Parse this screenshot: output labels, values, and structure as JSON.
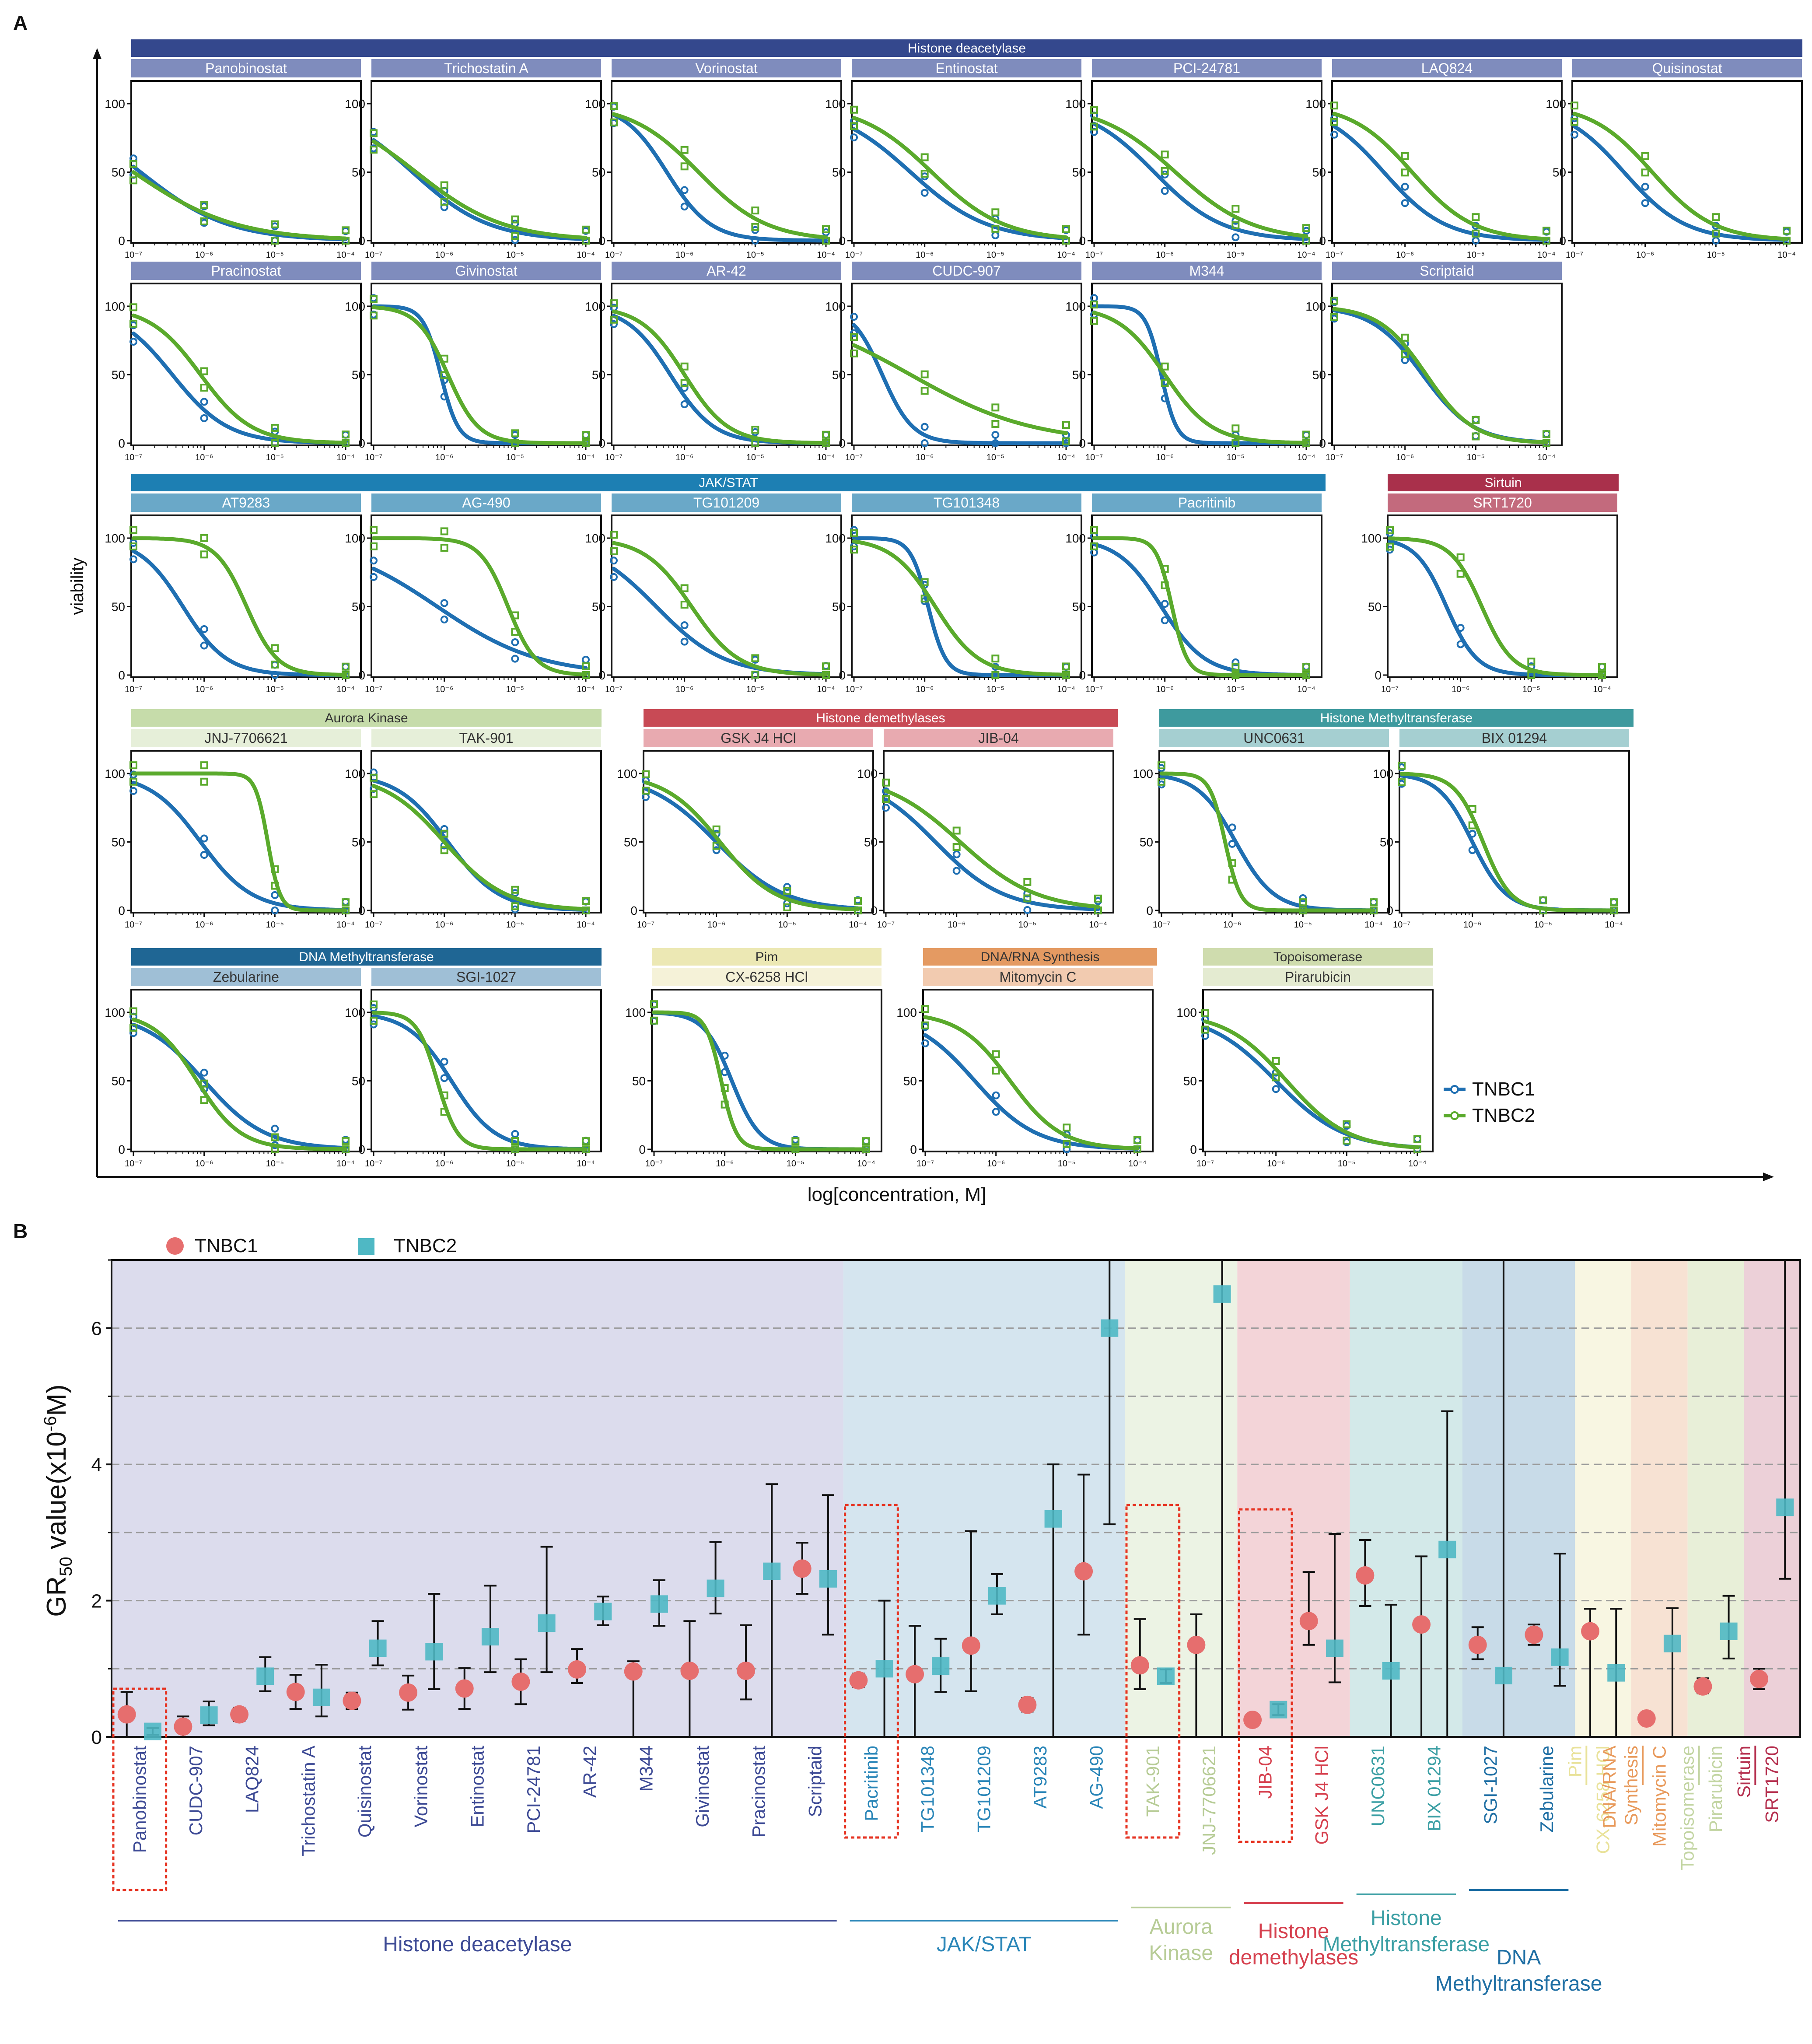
{
  "panelA": {
    "label": "A",
    "ylabel": "viability",
    "xlabel": "log[concentration, M]",
    "yticks": [
      "0",
      "50",
      "100"
    ],
    "xticks": [
      "10⁻⁷",
      "10⁻⁶",
      "10⁻⁵",
      "10⁻⁴"
    ],
    "legend": [
      {
        "name": "TNBC1",
        "color": "#1f6fb2"
      },
      {
        "name": "TNBC2",
        "color": "#5aaa2c"
      }
    ],
    "groups": [
      {
        "name": "Histone deacetylase",
        "color": "#34488d",
        "sub": "#7f8cbd",
        "subText": "#ffffff",
        "text": "#ffffff"
      },
      {
        "name": "Histone deacetylase",
        "color": "#34488d",
        "sub": "#7f8cbd",
        "subText": "#ffffff",
        "text": "#ffffff"
      },
      {
        "name": "JAK/STAT",
        "color": "#1d7fb3",
        "sub": "#6aa8c8",
        "subText": "#ffffff",
        "text": "#ffffff"
      },
      {
        "name": "Sirtuin",
        "color": "#a9304b",
        "sub": "#c36a7d",
        "subText": "#ffffff",
        "text": "#ffffff"
      },
      {
        "name": "Aurora Kinase",
        "color": "#c6dcaa",
        "sub": "#e6efd9",
        "subText": "#333333",
        "text": "#333333"
      },
      {
        "name": "Histone demethylases",
        "color": "#c84a55",
        "sub": "#e8aab0",
        "subText": "#333333",
        "text": "#ffffff"
      },
      {
        "name": "Histone Methyltransferase",
        "color": "#3e9a9e",
        "sub": "#a5cfd1",
        "subText": "#333333",
        "text": "#ffffff"
      },
      {
        "name": "DNA Methyltransferase",
        "color": "#1f6694",
        "sub": "#9fbfd6",
        "subText": "#333333",
        "text": "#ffffff"
      },
      {
        "name": "Pim",
        "color": "#ece8b4",
        "sub": "#f5f2d8",
        "subText": "#333333",
        "text": "#333333"
      },
      {
        "name": "DNA/RNA Synthesis",
        "color": "#e49a62",
        "sub": "#f2cbb0",
        "subText": "#333333",
        "text": "#333333"
      },
      {
        "name": "Topoisomerase",
        "color": "#cfdcae",
        "sub": "#e4ebd1",
        "subText": "#333333",
        "text": "#333333"
      }
    ],
    "drugs": [
      {
        "name": "Panobinostat",
        "group": 0,
        "ic1": -6.9,
        "h1": 0.7,
        "ic2": -7.0,
        "h2": 0.6
      },
      {
        "name": "Trichostatin A",
        "group": 0,
        "ic1": -6.45,
        "h1": 0.8,
        "ic2": -6.4,
        "h2": 0.7
      },
      {
        "name": "Vorinostat",
        "group": 0,
        "ic1": -6.25,
        "h1": 1.4,
        "ic2": -5.8,
        "h2": 0.9
      },
      {
        "name": "Entinostat",
        "group": 0,
        "ic1": -6.2,
        "h1": 0.8,
        "ic2": -5.9,
        "h2": 0.85
      },
      {
        "name": "PCI-24781",
        "group": 0,
        "ic1": -6.15,
        "h1": 0.9,
        "ic2": -5.85,
        "h2": 0.8
      },
      {
        "name": "LAQ824",
        "group": 0,
        "ic1": -6.3,
        "h1": 1.0,
        "ic2": -5.9,
        "h2": 1.0
      },
      {
        "name": "Quisinostat",
        "group": 0,
        "ic1": -6.3,
        "h1": 1.0,
        "ic2": -5.9,
        "h2": 1.0
      },
      {
        "name": "Pracinostat",
        "group": 1,
        "ic1": -6.45,
        "h1": 1.1,
        "ic2": -6.05,
        "h2": 1.2
      },
      {
        "name": "Givinostat",
        "group": 1,
        "ic1": -6.05,
        "h1": 3.5,
        "ic2": -5.95,
        "h2": 2.0
      },
      {
        "name": "AR-42",
        "group": 1,
        "ic1": -6.2,
        "h1": 1.4,
        "ic2": -6.0,
        "h2": 1.4
      },
      {
        "name": "CUDC-907",
        "group": 1,
        "ic1": -6.6,
        "h1": 2.0,
        "ic2": -6.2,
        "h2": 0.5
      },
      {
        "name": "M344",
        "group": 1,
        "ic1": -6.05,
        "h1": 4.0,
        "ic2": -6.0,
        "h2": 1.3
      },
      {
        "name": "Scriptaid",
        "group": 1,
        "ic1": -5.75,
        "h1": 1.2,
        "ic2": -5.7,
        "h2": 1.3
      },
      {
        "name": "AT9283",
        "group": 2,
        "ic1": -6.3,
        "h1": 1.4,
        "ic2": -5.4,
        "h2": 2.0
      },
      {
        "name": "AG-490",
        "group": 2,
        "ic1": -6.1,
        "h1": 0.6,
        "ic2": -5.1,
        "h2": 2.2
      },
      {
        "name": "TG101209",
        "group": 2,
        "ic1": -6.4,
        "h1": 0.9,
        "ic2": -5.9,
        "h2": 1.3
      },
      {
        "name": "TG101348",
        "group": 2,
        "ic1": -5.95,
        "h1": 3.5,
        "ic2": -5.85,
        "h2": 1.4
      },
      {
        "name": "Pacritinib",
        "group": 2,
        "ic1": -6.05,
        "h1": 1.4,
        "ic2": -5.9,
        "h2": 4.0
      },
      {
        "name": "SRT1720",
        "group": 3,
        "ic1": -6.2,
        "h1": 2.0,
        "ic2": -5.7,
        "h2": 2.0
      },
      {
        "name": "JNJ-7706621",
        "group": 4,
        "ic1": -6.05,
        "h1": 1.2,
        "ic2": -5.1,
        "h2": 5.0
      },
      {
        "name": "TAK-901",
        "group": 4,
        "ic1": -5.95,
        "h1": 1.2,
        "ic2": -6.0,
        "h2": 1.0
      },
      {
        "name": "GSK J4 HCl",
        "group": 5,
        "ic1": -6.0,
        "h1": 0.9,
        "ic2": -5.95,
        "h2": 1.1
      },
      {
        "name": "JIB-04",
        "group": 5,
        "ic1": -6.3,
        "h1": 0.9,
        "ic2": -5.95,
        "h2": 0.8
      },
      {
        "name": "UNC0631",
        "group": 6,
        "ic1": -5.95,
        "h1": 1.6,
        "ic2": -6.1,
        "h2": 4.0
      },
      {
        "name": "BIX 01294",
        "group": 6,
        "ic1": -6.0,
        "h1": 1.8,
        "ic2": -5.85,
        "h2": 2.2
      },
      {
        "name": "Zebularine",
        "group": 7,
        "ic1": -6.0,
        "h1": 1.0,
        "ic2": -6.1,
        "h2": 1.4
      },
      {
        "name": "SGI-1027",
        "group": 7,
        "ic1": -5.9,
        "h1": 1.4,
        "ic2": -6.1,
        "h2": 3.0
      },
      {
        "name": "CX-6258 HCl",
        "group": 8,
        "ic1": -5.9,
        "h1": 2.2,
        "ic2": -6.05,
        "h2": 4.0
      },
      {
        "name": "Mitomycin C",
        "group": 9,
        "ic1": -6.3,
        "h1": 1.0,
        "ic2": -5.8,
        "h2": 1.2
      },
      {
        "name": "Pirarubicin",
        "group": 10,
        "ic1": -6.0,
        "h1": 0.9,
        "ic2": -5.85,
        "h2": 1.0
      }
    ]
  },
  "chart_data": {
    "type": "scatter",
    "panel_label": "B",
    "title": "",
    "ylabel": "GR50 value(x10-6M)",
    "ylabel_parts": {
      "pre": "GR",
      "sub": "50",
      "mid": " value(x10",
      "sup": "-6",
      "post": "M)"
    },
    "ylim": [
      0,
      7
    ],
    "yticks": [
      "0",
      "2",
      "4",
      "6"
    ],
    "legend": [
      {
        "name": "TNBC1",
        "color": "#e66e6e"
      },
      {
        "name": "TNBC2",
        "color": "#4fb8c4"
      }
    ],
    "categories": [
      "Panobinostat",
      "CUDC-907",
      "LAQ824",
      "Trichostatin A",
      "Quisinostat",
      "Vorinostat",
      "Entinostat",
      "PCI-24781",
      "AR-42",
      "M344",
      "Givinostat",
      "Pracinostat",
      "Scriptaid",
      "Pacritinib",
      "TG101348",
      "TG101209",
      "AT9283",
      "AG-490",
      "TAK-901",
      "JNJ-7706621",
      "JIB-04",
      "GSK J4 HCl",
      "UNC0631",
      "BIX 01294",
      "SGI-1027",
      "Zebularine",
      "CX-6258 HCl",
      "Mitomycin C",
      "Pirarubicin",
      "SRT1720"
    ],
    "series": [
      {
        "name": "TNBC1",
        "values": [
          0.33,
          0.15,
          0.33,
          0.66,
          0.53,
          0.65,
          0.71,
          0.81,
          0.99,
          0.96,
          0.97,
          0.97,
          2.47,
          0.83,
          0.92,
          1.34,
          0.47,
          2.43,
          1.05,
          1.35,
          0.25,
          1.7,
          2.37,
          1.65,
          1.35,
          1.5,
          1.55,
          0.27,
          0.74,
          0.85
        ],
        "err_low": [
          0.33,
          0.15,
          0.1,
          0.25,
          0.12,
          0.25,
          0.3,
          0.33,
          0.2,
          0.96,
          0.97,
          0.42,
          0.37,
          0.1,
          0.92,
          0.67,
          0.1,
          0.93,
          0.35,
          1.35,
          0.02,
          0.35,
          0.45,
          1.65,
          0.21,
          0.15,
          1.55,
          0.07,
          0.1,
          0.15
        ],
        "err_high": [
          0.33,
          0.15,
          0.1,
          0.25,
          0.12,
          0.25,
          0.3,
          0.33,
          0.3,
          0.15,
          0.73,
          0.67,
          0.38,
          0.1,
          0.71,
          1.68,
          0.1,
          1.42,
          0.68,
          0.45,
          0.02,
          0.72,
          0.52,
          1.0,
          0.26,
          0.15,
          0.33,
          0.07,
          0.12,
          0.15
        ]
      },
      {
        "name": "TNBC2",
        "values": [
          0.08,
          0.32,
          0.89,
          0.58,
          1.3,
          1.25,
          1.47,
          1.67,
          1.84,
          1.95,
          2.18,
          2.43,
          2.32,
          1.0,
          1.04,
          2.07,
          3.2,
          6.0,
          0.89,
          6.5,
          0.4,
          1.3,
          0.97,
          2.75,
          0.9,
          1.17,
          0.94,
          1.37,
          1.55,
          3.37
        ],
        "err_low": [
          0.05,
          0.15,
          0.22,
          0.28,
          0.25,
          0.55,
          0.52,
          0.72,
          0.2,
          0.32,
          0.37,
          2.43,
          0.82,
          1.0,
          0.38,
          0.27,
          3.2,
          2.88,
          0.1,
          6.5,
          0.08,
          0.5,
          0.97,
          2.75,
          0.9,
          0.42,
          0.94,
          1.37,
          0.4,
          1.05
        ],
        "err_high": [
          0.05,
          0.2,
          0.28,
          0.48,
          0.4,
          0.85,
          0.75,
          1.12,
          0.22,
          0.35,
          0.68,
          1.28,
          1.23,
          1.0,
          0.4,
          0.32,
          0.8,
          7.0,
          0.1,
          7.0,
          0.08,
          1.68,
          0.97,
          2.03,
          7.0,
          1.52,
          0.94,
          0.52,
          0.52,
          7.0
        ]
      }
    ],
    "group_colors": [
      0,
      0,
      0,
      0,
      0,
      0,
      0,
      0,
      0,
      0,
      0,
      0,
      0,
      1,
      1,
      1,
      1,
      1,
      2,
      2,
      3,
      3,
      4,
      4,
      5,
      5,
      6,
      7,
      8,
      9
    ],
    "groups": [
      {
        "name": "Histone deacetylase",
        "lines": [
          "Histone deacetylase"
        ],
        "color": "#3d4a95",
        "bg": "#dcdced"
      },
      {
        "name": "JAK/STAT",
        "lines": [
          "JAK/STAT"
        ],
        "color": "#2a86b8",
        "bg": "#d5e5ef"
      },
      {
        "name": "Aurora Kinase",
        "lines": [
          "Aurora",
          "Kinase"
        ],
        "color": "#b7cc96",
        "bg": "#ecf3e4"
      },
      {
        "name": "Histone demethylases",
        "lines": [
          "Histone",
          "demethylases"
        ],
        "color": "#d6404e",
        "bg": "#f3d4d8"
      },
      {
        "name": "Histone Methyltransferase",
        "lines": [
          "Histone",
          "Methyltransferase"
        ],
        "color": "#3b9fa4",
        "bg": "#d3e9e9"
      },
      {
        "name": "DNA Methyltransferase",
        "lines": [
          "DNA",
          "Methyltransferase"
        ],
        "color": "#1f6fa4",
        "bg": "#c8dbe8"
      },
      {
        "name": "Pim",
        "lines": [
          "Pim"
        ],
        "color": "#e9e29a",
        "bg": "#f8f6e2"
      },
      {
        "name": "DNA/RNA Synthesis",
        "lines": [
          "DNA/RNA",
          "Synthesis"
        ],
        "color": "#e89a5c",
        "bg": "#f7e2d3"
      },
      {
        "name": "Topoisomerase",
        "lines": [
          "Topoisomerase"
        ],
        "color": "#c3d5a3",
        "bg": "#e8efd8"
      },
      {
        "name": "Sirtuin",
        "lines": [
          "Sirtuin"
        ],
        "color": "#b5304f",
        "bg": "#ecd0d8"
      }
    ],
    "highlighted": [
      "Panobinostat",
      "Pacritinib",
      "TAK-901",
      "JIB-04"
    ]
  }
}
